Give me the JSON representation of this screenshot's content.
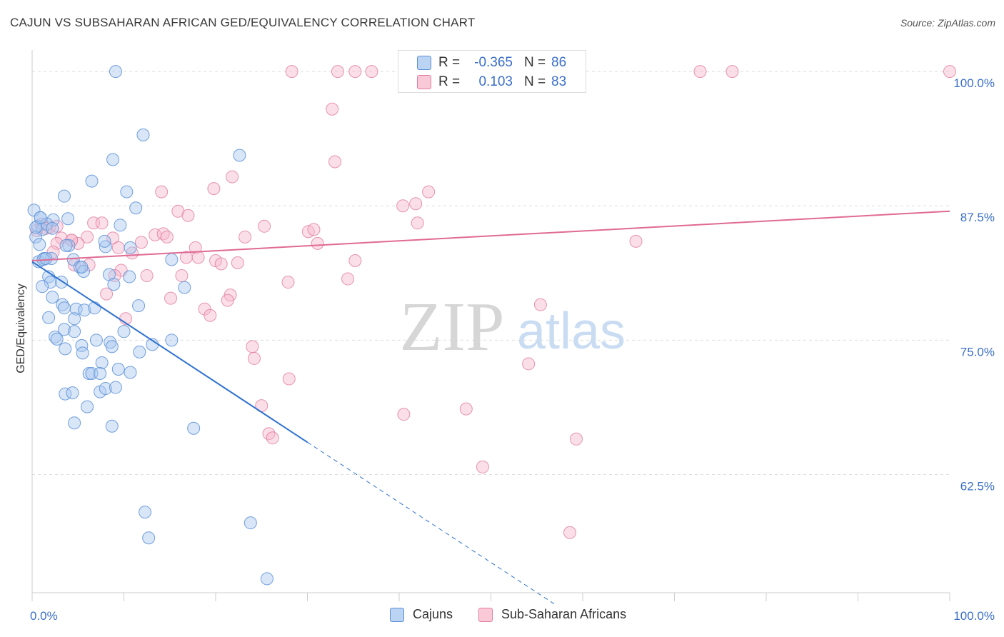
{
  "header": {
    "title": "CAJUN VS SUBSAHARAN AFRICAN GED/EQUIVALENCY CORRELATION CHART",
    "source": "Source: ZipAtlas.com"
  },
  "watermark": {
    "zip": "ZIP",
    "atlas": "atlas"
  },
  "stats": [
    {
      "r_label": "R =",
      "r_value": "-0.365",
      "n_label": "N =",
      "n_value": "86"
    },
    {
      "r_label": "R =",
      "r_value": "0.103",
      "n_label": "N =",
      "n_value": "83"
    }
  ],
  "colors": {
    "cajun_fill": "#a9c8ef",
    "cajun_stroke": "#5b8fd6",
    "cajun_line": "#2f72d0",
    "ssa_fill": "#f6b8cb",
    "ssa_stroke": "#e07c9f",
    "ssa_line": "#e06a94",
    "tick_label": "#3a6fc8",
    "grid": "#dddddd"
  },
  "chart_data": {
    "type": "scatter",
    "ylabel": "GED/Equivalency",
    "xlim": [
      0,
      100
    ],
    "ylim": [
      51.5,
      102
    ],
    "x_ticks": [
      "0.0%",
      "100.0%"
    ],
    "y_ticks": [
      {
        "value": 100,
        "label": "100.0%"
      },
      {
        "value": 87.5,
        "label": "87.5%"
      },
      {
        "value": 75,
        "label": "75.0%"
      },
      {
        "value": 62.5,
        "label": "62.5%"
      }
    ],
    "series": [
      {
        "name": "Cajuns",
        "trend": {
          "x0": 0,
          "y0": 82.3,
          "x1": 30,
          "y1": 65.5,
          "dash_to_x": 57,
          "dash_to_y": 50.4
        },
        "points": [
          [
            9.1,
            100
          ],
          [
            12.1,
            94.1
          ],
          [
            8.8,
            91.8
          ],
          [
            22.6,
            92.2
          ],
          [
            6.5,
            89.8
          ],
          [
            10.3,
            88.8
          ],
          [
            3.5,
            88.4
          ],
          [
            11.3,
            87.3
          ],
          [
            0.2,
            87.1
          ],
          [
            0.9,
            86.4
          ],
          [
            2.3,
            86.2
          ],
          [
            3.9,
            86.3
          ],
          [
            0.6,
            85.6
          ],
          [
            1.1,
            85.3
          ],
          [
            1.6,
            85.8
          ],
          [
            0.4,
            84.6
          ],
          [
            9.6,
            85.7
          ],
          [
            0.8,
            83.9
          ],
          [
            4.0,
            83.8
          ],
          [
            8.0,
            83.7
          ],
          [
            10.7,
            83.6
          ],
          [
            7.9,
            84.2
          ],
          [
            1.3,
            82.6
          ],
          [
            2.1,
            82.6
          ],
          [
            4.5,
            82.5
          ],
          [
            0.7,
            82.3
          ],
          [
            1.2,
            82.5
          ],
          [
            15.2,
            82.5
          ],
          [
            5.2,
            81.8
          ],
          [
            5.6,
            81.4
          ],
          [
            1.8,
            80.9
          ],
          [
            8.4,
            81.1
          ],
          [
            10.6,
            80.9
          ],
          [
            2.0,
            80.4
          ],
          [
            3.2,
            80.4
          ],
          [
            8.9,
            80.2
          ],
          [
            1.1,
            80.0
          ],
          [
            16.6,
            79.9
          ],
          [
            2.2,
            79.0
          ],
          [
            3.3,
            78.3
          ],
          [
            3.5,
            78.0
          ],
          [
            11.6,
            78.2
          ],
          [
            4.8,
            77.9
          ],
          [
            5.7,
            77.8
          ],
          [
            6.8,
            78.0
          ],
          [
            1.8,
            77.1
          ],
          [
            4.6,
            77.0
          ],
          [
            3.5,
            76.0
          ],
          [
            4.6,
            75.8
          ],
          [
            10.0,
            75.8
          ],
          [
            2.5,
            75.3
          ],
          [
            2.7,
            75.1
          ],
          [
            7.0,
            75.0
          ],
          [
            8.5,
            74.8
          ],
          [
            15.2,
            75.0
          ],
          [
            5.4,
            74.5
          ],
          [
            8.7,
            74.4
          ],
          [
            13.1,
            74.6
          ],
          [
            3.6,
            74.2
          ],
          [
            5.5,
            73.8
          ],
          [
            11.7,
            73.9
          ],
          [
            7.6,
            72.9
          ],
          [
            9.4,
            72.3
          ],
          [
            10.7,
            72.0
          ],
          [
            6.2,
            71.9
          ],
          [
            6.5,
            71.9
          ],
          [
            7.4,
            71.9
          ],
          [
            3.6,
            70.0
          ],
          [
            4.4,
            70.1
          ],
          [
            7.4,
            70.2
          ],
          [
            8.0,
            70.5
          ],
          [
            9.1,
            70.6
          ],
          [
            6.0,
            68.8
          ],
          [
            4.6,
            67.3
          ],
          [
            8.7,
            67.0
          ],
          [
            17.6,
            66.8
          ],
          [
            12.3,
            59.0
          ],
          [
            12.7,
            56.6
          ],
          [
            23.8,
            58.0
          ],
          [
            25.6,
            52.8
          ],
          [
            0.4,
            85.5
          ],
          [
            2.2,
            85.4
          ],
          [
            0.9,
            86.4
          ],
          [
            1.5,
            82.6
          ],
          [
            3.7,
            83.8
          ],
          [
            5.4,
            81.8
          ]
        ]
      },
      {
        "name": "Sub-Saharan Africans",
        "trend": {
          "x0": 0,
          "y0": 82.4,
          "x1": 100,
          "y1": 87.0
        },
        "points": [
          [
            28.3,
            100
          ],
          [
            33.3,
            100
          ],
          [
            35.2,
            100
          ],
          [
            37.0,
            100
          ],
          [
            42.2,
            100
          ],
          [
            43.4,
            100
          ],
          [
            44.4,
            100
          ],
          [
            72.8,
            100
          ],
          [
            76.3,
            100
          ],
          [
            100,
            100
          ],
          [
            32.7,
            96.5
          ],
          [
            33.0,
            91.6
          ],
          [
            21.8,
            90.2
          ],
          [
            14.1,
            88.8
          ],
          [
            19.8,
            89.1
          ],
          [
            43.2,
            88.8
          ],
          [
            40.4,
            87.5
          ],
          [
            41.8,
            87.7
          ],
          [
            15.9,
            87.0
          ],
          [
            17.0,
            86.6
          ],
          [
            6.7,
            85.9
          ],
          [
            7.6,
            85.9
          ],
          [
            25.3,
            85.6
          ],
          [
            42.0,
            85.9
          ],
          [
            1.0,
            85.8
          ],
          [
            1.9,
            85.5
          ],
          [
            0.5,
            85.2
          ],
          [
            1.5,
            85.4
          ],
          [
            2.7,
            85.6
          ],
          [
            3.2,
            84.5
          ],
          [
            4.3,
            84.3
          ],
          [
            6.0,
            84.6
          ],
          [
            8.8,
            84.5
          ],
          [
            11.9,
            84.1
          ],
          [
            13.4,
            84.8
          ],
          [
            14.3,
            84.9
          ],
          [
            14.7,
            84.6
          ],
          [
            23.2,
            84.6
          ],
          [
            30.1,
            85.1
          ],
          [
            30.7,
            85.3
          ],
          [
            2.7,
            84.0
          ],
          [
            5.0,
            84.0
          ],
          [
            9.4,
            83.6
          ],
          [
            17.8,
            83.6
          ],
          [
            31.1,
            84.0
          ],
          [
            65.8,
            84.2
          ],
          [
            2.3,
            83.2
          ],
          [
            10.9,
            83.1
          ],
          [
            16.8,
            82.7
          ],
          [
            18.1,
            82.7
          ],
          [
            20.0,
            82.4
          ],
          [
            20.6,
            82.1
          ],
          [
            22.4,
            82.2
          ],
          [
            35.2,
            82.4
          ],
          [
            4.6,
            82.0
          ],
          [
            6.2,
            82.0
          ],
          [
            9.7,
            81.5
          ],
          [
            12.5,
            81.0
          ],
          [
            16.3,
            81.0
          ],
          [
            27.9,
            80.4
          ],
          [
            34.4,
            80.7
          ],
          [
            8.1,
            79.3
          ],
          [
            15.1,
            78.9
          ],
          [
            21.6,
            79.2
          ],
          [
            21.3,
            78.7
          ],
          [
            18.8,
            77.9
          ],
          [
            19.4,
            77.3
          ],
          [
            55.4,
            78.3
          ],
          [
            10.2,
            77.0
          ],
          [
            24.0,
            74.4
          ],
          [
            24.2,
            73.3
          ],
          [
            54.1,
            72.8
          ],
          [
            28.0,
            71.4
          ],
          [
            25.0,
            68.9
          ],
          [
            40.5,
            68.1
          ],
          [
            47.3,
            68.6
          ],
          [
            25.8,
            66.3
          ],
          [
            26.2,
            65.9
          ],
          [
            59.3,
            65.8
          ],
          [
            49.1,
            63.2
          ],
          [
            58.6,
            57.1
          ],
          [
            4.3,
            84.3
          ],
          [
            9.0,
            81.0
          ]
        ]
      }
    ]
  }
}
